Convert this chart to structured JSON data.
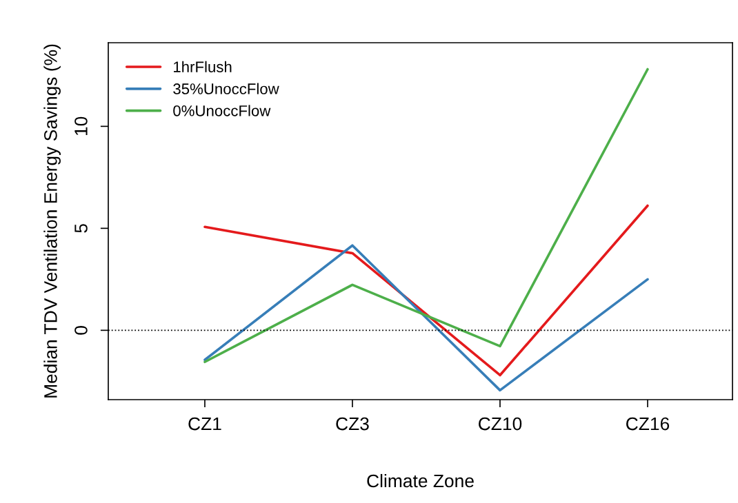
{
  "chart_data": {
    "type": "line",
    "xlabel": "Climate Zone",
    "ylabel": "Median TDV Ventilation Energy Savings (%)",
    "categories": [
      "CZ1",
      "CZ3",
      "CZ10",
      "CZ16"
    ],
    "series": [
      {
        "name": "1hrFlush",
        "color": "#e41a1c",
        "values": [
          5.07,
          3.78,
          -2.2,
          6.11
        ]
      },
      {
        "name": "35%UnoccFlow",
        "color": "#377eb8",
        "values": [
          -1.45,
          4.16,
          -2.94,
          2.5
        ]
      },
      {
        "name": "0%UnoccFlow",
        "color": "#4daf4a",
        "values": [
          -1.55,
          2.23,
          -0.78,
          12.8
        ]
      }
    ],
    "ylim": [
      -3.4,
      14.1
    ],
    "yticks": [
      0,
      5,
      10
    ],
    "ref_lines": [
      {
        "axis": "y",
        "value": 0,
        "color": "#000000",
        "line_style": "dotted"
      }
    ],
    "grid": false,
    "legend": "top left",
    "marker": "none",
    "line_style": "solid"
  }
}
